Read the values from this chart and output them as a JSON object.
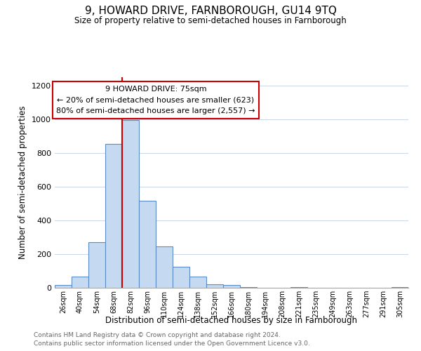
{
  "title": "9, HOWARD DRIVE, FARNBOROUGH, GU14 9TQ",
  "subtitle": "Size of property relative to semi-detached houses in Farnborough",
  "xlabel": "Distribution of semi-detached houses by size in Farnborough",
  "ylabel": "Number of semi-detached properties",
  "bin_labels": [
    "26sqm",
    "40sqm",
    "54sqm",
    "68sqm",
    "82sqm",
    "96sqm",
    "110sqm",
    "124sqm",
    "138sqm",
    "152sqm",
    "166sqm",
    "180sqm",
    "194sqm",
    "208sqm",
    "221sqm",
    "235sqm",
    "249sqm",
    "263sqm",
    "277sqm",
    "291sqm",
    "305sqm"
  ],
  "bar_values": [
    15,
    65,
    270,
    855,
    995,
    515,
    245,
    125,
    65,
    20,
    15,
    5,
    0,
    0,
    5,
    0,
    0,
    0,
    0,
    0,
    5
  ],
  "bar_color": "#c5d9f0",
  "bar_edge_color": "#5b8cc8",
  "highlight_line_color": "#cc0000",
  "annotation_line1": "9 HOWARD DRIVE: 75sqm",
  "annotation_line2": "← 20% of semi-detached houses are smaller (623)",
  "annotation_line3": "80% of semi-detached houses are larger (2,557) →",
  "annotation_box_edge_color": "#cc0000",
  "ylim": [
    0,
    1250
  ],
  "yticks": [
    0,
    200,
    400,
    600,
    800,
    1000,
    1200
  ],
  "footer_line1": "Contains HM Land Registry data © Crown copyright and database right 2024.",
  "footer_line2": "Contains public sector information licensed under the Open Government Licence v3.0.",
  "background_color": "#ffffff",
  "grid_color": "#c8d4e8"
}
